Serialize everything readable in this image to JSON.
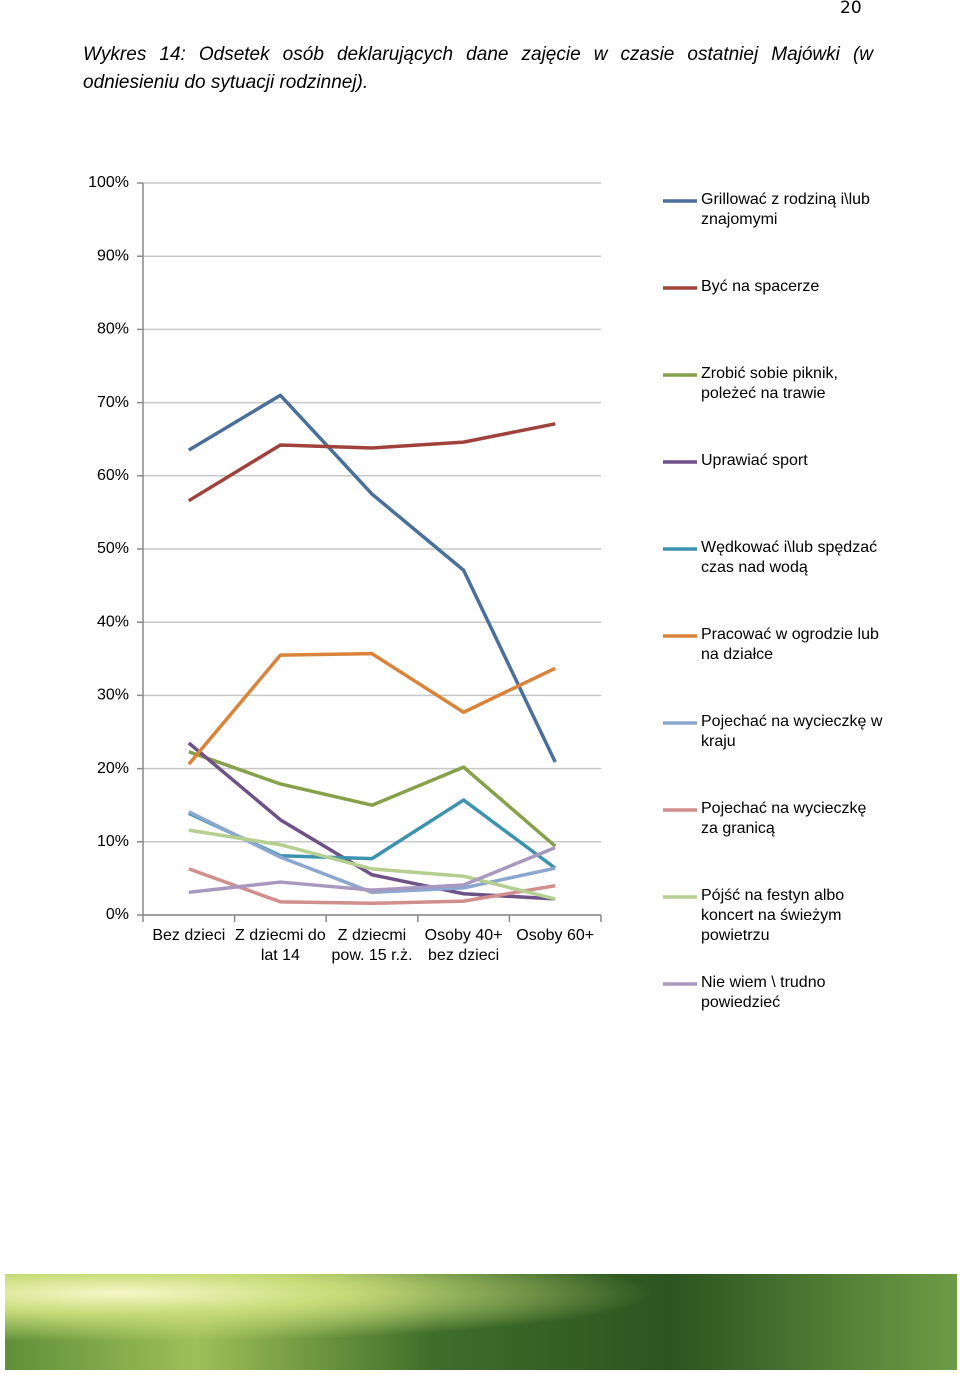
{
  "page_number": "20",
  "caption": "Wykres 14: Odsetek osób deklarujących dane zajęcie w czasie ostatniej Majówki (w odniesieniu do sytuacji rodzinnej).",
  "chart_data": {
    "type": "line",
    "categories": [
      "Bez dzieci",
      "Z dziecmi do lat 14",
      "Z dziecmi pow. 15 r.ż.",
      "Osoby 40+ bez dzieci",
      "Osoby 60+"
    ],
    "ylim": [
      0,
      100
    ],
    "yticks": [
      {
        "value": 0,
        "label": "0%"
      },
      {
        "value": 10,
        "label": "10%"
      },
      {
        "value": 20,
        "label": "20%"
      },
      {
        "value": 30,
        "label": "30%"
      },
      {
        "value": 40,
        "label": "40%"
      },
      {
        "value": 50,
        "label": "50%"
      },
      {
        "value": 60,
        "label": "60%"
      },
      {
        "value": 70,
        "label": "70%"
      },
      {
        "value": 80,
        "label": "80%"
      },
      {
        "value": 90,
        "label": "90%"
      },
      {
        "value": 100,
        "label": "100%"
      }
    ],
    "grid": true,
    "legend": "right",
    "series": [
      {
        "name": "Grillować z rodziną i\\lub znajomymi",
        "color": "#4a6f9b",
        "values": [
          63.5,
          71.0,
          57.5,
          47.1,
          20.9
        ]
      },
      {
        "name": "Być na spacerze",
        "color": "#a0423c",
        "values": [
          56.6,
          64.2,
          63.8,
          64.6,
          67.1
        ]
      },
      {
        "name": "Zrobić sobie piknik, poleżeć na trawie",
        "color": "#85a14a",
        "values": [
          22.3,
          17.9,
          15.0,
          20.2,
          9.4
        ]
      },
      {
        "name": "Uprawiać sport",
        "color": "#6e5186",
        "values": [
          23.5,
          13.0,
          5.5,
          2.9,
          2.2
        ]
      },
      {
        "name": "Wędkować i\\lub spędzać czas nad wodą",
        "color": "#3d93ad",
        "values": [
          13.9,
          8.1,
          7.7,
          15.7,
          6.4
        ]
      },
      {
        "name": "Pracować w ogrodzie lub na działce",
        "color": "#d9843a",
        "values": [
          20.6,
          35.5,
          35.7,
          27.7,
          33.7
        ]
      },
      {
        "name": "Pojechać na wycieczkę w kraju",
        "color": "#8ba7cf",
        "values": [
          14.1,
          7.9,
          3.1,
          3.7,
          6.4
        ]
      },
      {
        "name": "Pojechać na wycieczkę za granicą",
        "color": "#d08f8c",
        "values": [
          6.3,
          1.8,
          1.6,
          1.9,
          4.0
        ]
      },
      {
        "name": "Pójść na festyn albo koncert na świeżym powietrzu",
        "color": "#b5cf8f",
        "values": [
          11.6,
          9.6,
          6.3,
          5.3,
          2.2
        ]
      },
      {
        "name": "Nie wiem \\ trudno powiedzieć",
        "color": "#a898c0",
        "values": [
          3.1,
          4.5,
          3.4,
          4.1,
          9.2
        ]
      }
    ]
  }
}
